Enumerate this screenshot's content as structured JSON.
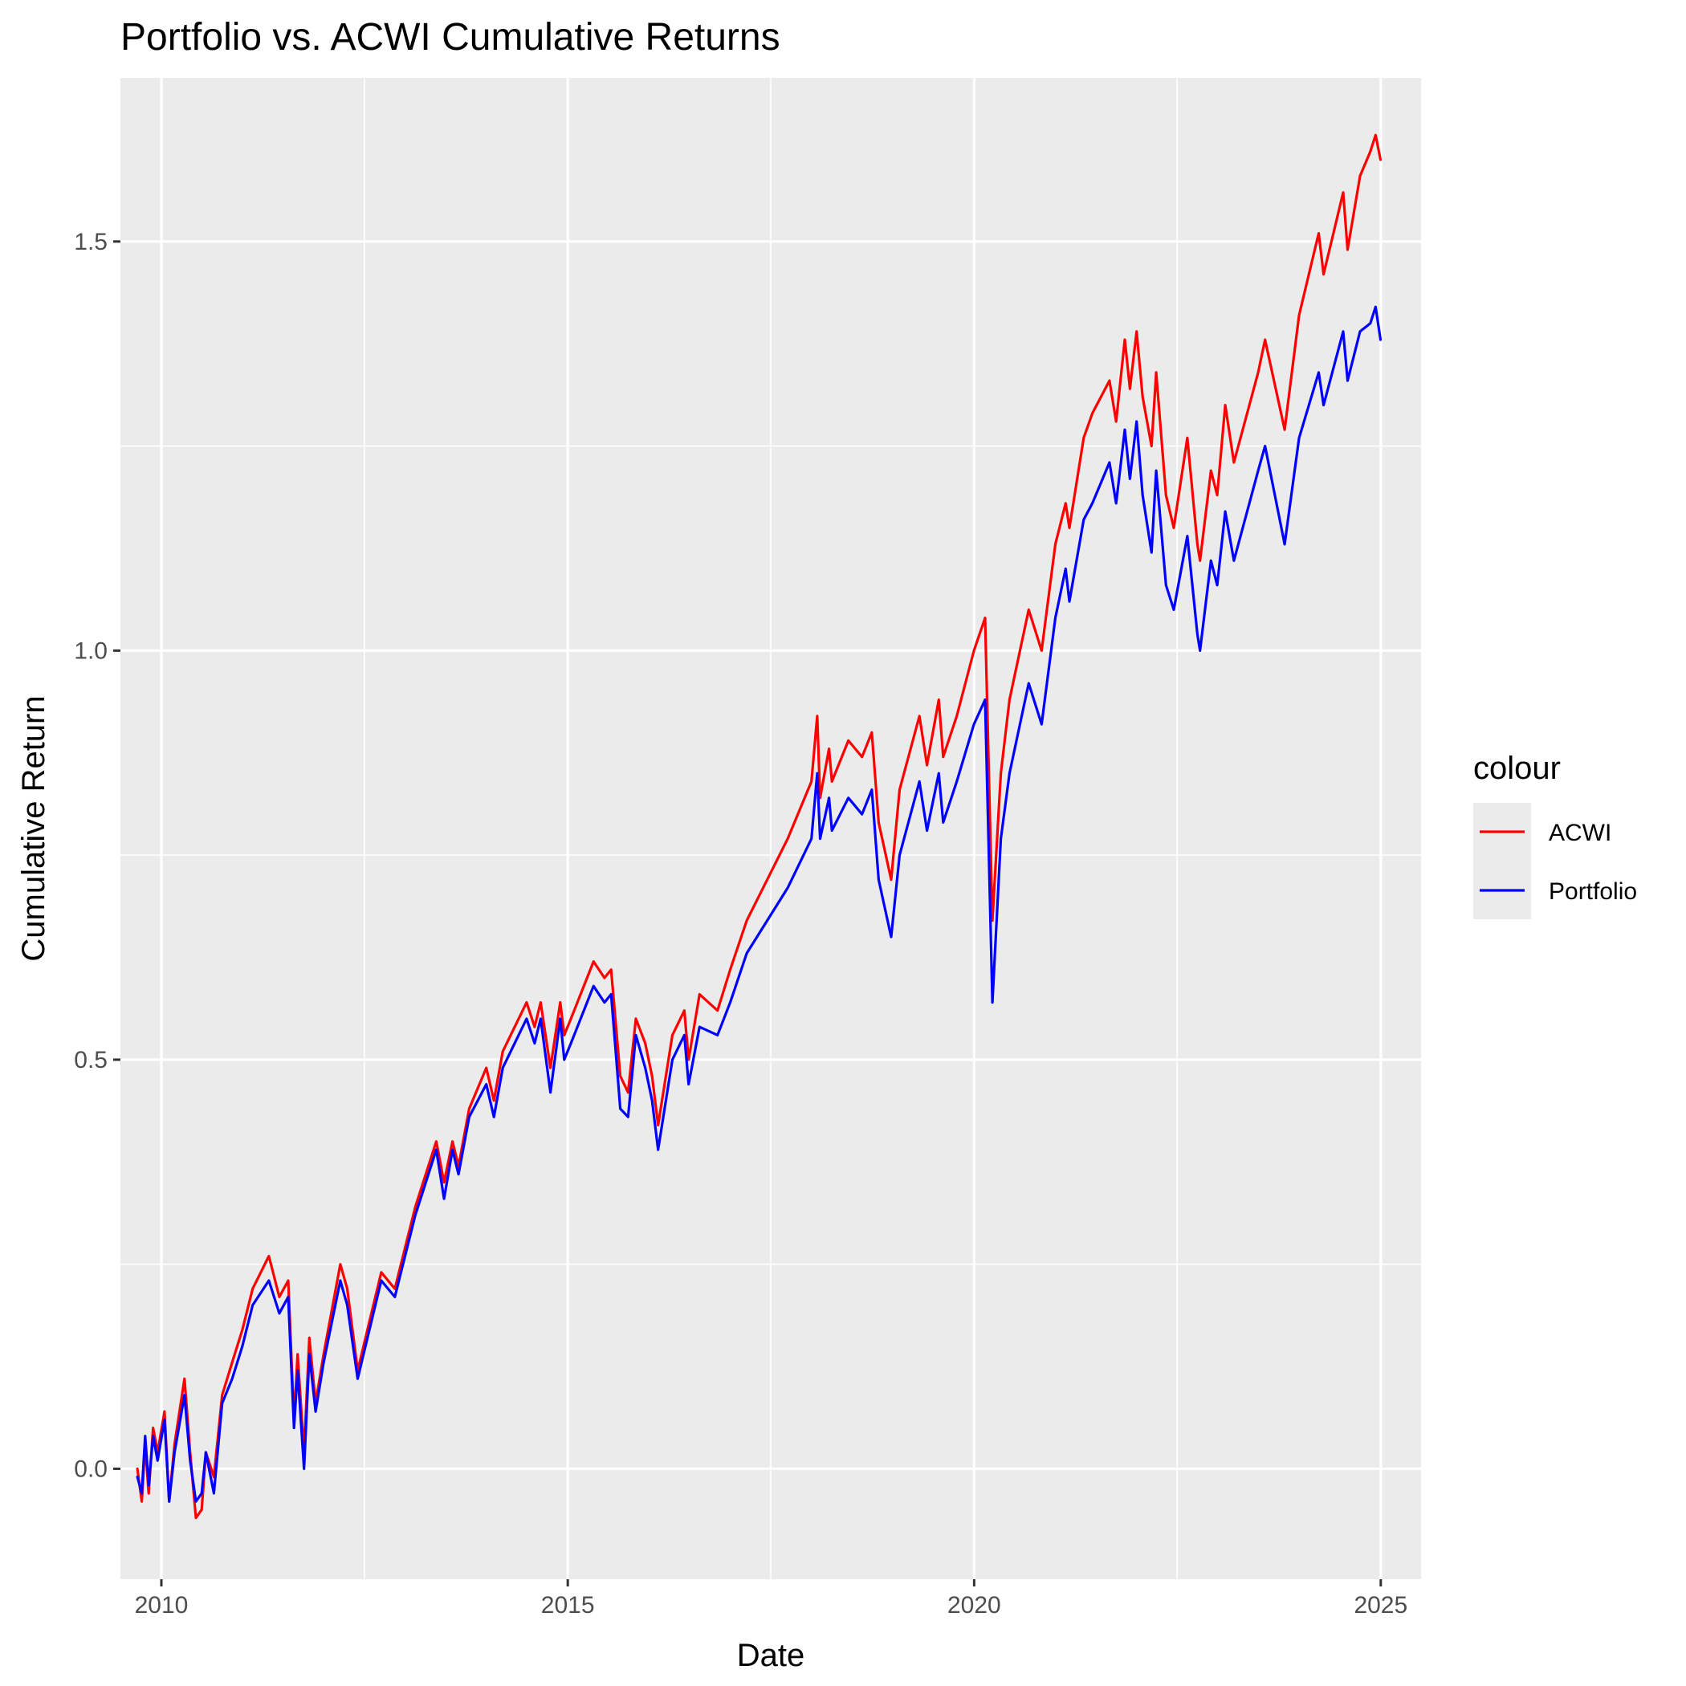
{
  "chart_data": {
    "type": "line",
    "title": "Portfolio vs. ACWI Cumulative Returns",
    "xlabel": "Date",
    "ylabel": "Cumulative Return",
    "xlim": [
      "2009-07-01",
      "2025-07-01"
    ],
    "ylim": [
      -0.135,
      1.7
    ],
    "x_ticks": [
      {
        "date": "2010-01-01",
        "label": "2010"
      },
      {
        "date": "2015-01-01",
        "label": "2015"
      },
      {
        "date": "2020-01-01",
        "label": "2020"
      },
      {
        "date": "2025-01-01",
        "label": "2025"
      }
    ],
    "x_minor_ticks": [
      "2012-07-01",
      "2017-07-01",
      "2022-07-01"
    ],
    "y_ticks": [
      0.0,
      0.5,
      1.0,
      1.5
    ],
    "y_tick_labels": [
      "0.0",
      "0.5",
      "1.0",
      "1.5"
    ],
    "y_minor_ticks": [
      0.25,
      0.75,
      1.25
    ],
    "grid": true,
    "legend": {
      "title": "colour",
      "position": "right"
    },
    "series": [
      {
        "name": "ACWI",
        "color": "#FF0000",
        "points": [
          [
            "2009-09-15",
            0.0
          ],
          [
            "2009-10-05",
            -0.04
          ],
          [
            "2009-10-20",
            0.03
          ],
          [
            "2009-11-05",
            -0.03
          ],
          [
            "2009-11-25",
            0.05
          ],
          [
            "2009-12-15",
            0.02
          ],
          [
            "2010-01-15",
            0.07
          ],
          [
            "2010-02-05",
            -0.04
          ],
          [
            "2010-03-01",
            0.03
          ],
          [
            "2010-04-15",
            0.11
          ],
          [
            "2010-05-10",
            0.02
          ],
          [
            "2010-06-05",
            -0.06
          ],
          [
            "2010-07-01",
            -0.05
          ],
          [
            "2010-07-20",
            0.02
          ],
          [
            "2010-08-25",
            -0.01
          ],
          [
            "2010-10-01",
            0.09
          ],
          [
            "2010-11-15",
            0.13
          ],
          [
            "2010-12-31",
            0.17
          ],
          [
            "2011-02-15",
            0.22
          ],
          [
            "2011-04-29",
            0.26
          ],
          [
            "2011-06-15",
            0.21
          ],
          [
            "2011-07-25",
            0.23
          ],
          [
            "2011-08-20",
            0.06
          ],
          [
            "2011-09-05",
            0.14
          ],
          [
            "2011-10-04",
            0.02
          ],
          [
            "2011-10-28",
            0.16
          ],
          [
            "2011-11-25",
            0.08
          ],
          [
            "2011-12-31",
            0.14
          ],
          [
            "2012-03-15",
            0.25
          ],
          [
            "2012-04-15",
            0.22
          ],
          [
            "2012-06-01",
            0.12
          ],
          [
            "2012-07-15",
            0.17
          ],
          [
            "2012-09-15",
            0.24
          ],
          [
            "2012-11-15",
            0.22
          ],
          [
            "2012-12-31",
            0.27
          ],
          [
            "2013-02-15",
            0.32
          ],
          [
            "2013-05-20",
            0.4
          ],
          [
            "2013-06-24",
            0.35
          ],
          [
            "2013-08-01",
            0.4
          ],
          [
            "2013-08-28",
            0.37
          ],
          [
            "2013-10-15",
            0.44
          ],
          [
            "2013-12-31",
            0.49
          ],
          [
            "2014-02-03",
            0.45
          ],
          [
            "2014-03-15",
            0.51
          ],
          [
            "2014-06-30",
            0.57
          ],
          [
            "2014-08-05",
            0.54
          ],
          [
            "2014-09-01",
            0.57
          ],
          [
            "2014-10-15",
            0.49
          ],
          [
            "2014-11-28",
            0.57
          ],
          [
            "2014-12-16",
            0.53
          ],
          [
            "2015-01-15",
            0.55
          ],
          [
            "2015-04-27",
            0.62
          ],
          [
            "2015-06-15",
            0.6
          ],
          [
            "2015-07-15",
            0.61
          ],
          [
            "2015-08-25",
            0.48
          ],
          [
            "2015-09-29",
            0.46
          ],
          [
            "2015-11-03",
            0.55
          ],
          [
            "2015-12-15",
            0.52
          ],
          [
            "2016-01-15",
            0.48
          ],
          [
            "2016-02-11",
            0.42
          ],
          [
            "2016-04-15",
            0.53
          ],
          [
            "2016-06-08",
            0.56
          ],
          [
            "2016-06-27",
            0.5
          ],
          [
            "2016-08-15",
            0.58
          ],
          [
            "2016-11-04",
            0.56
          ],
          [
            "2016-12-31",
            0.61
          ],
          [
            "2017-03-15",
            0.67
          ],
          [
            "2017-06-15",
            0.72
          ],
          [
            "2017-09-15",
            0.77
          ],
          [
            "2017-12-31",
            0.84
          ],
          [
            "2018-01-26",
            0.92
          ],
          [
            "2018-02-08",
            0.82
          ],
          [
            "2018-03-20",
            0.88
          ],
          [
            "2018-04-02",
            0.84
          ],
          [
            "2018-06-15",
            0.89
          ],
          [
            "2018-08-15",
            0.87
          ],
          [
            "2018-09-28",
            0.9
          ],
          [
            "2018-10-29",
            0.79
          ],
          [
            "2018-12-24",
            0.72
          ],
          [
            "2019-01-31",
            0.83
          ],
          [
            "2019-04-30",
            0.92
          ],
          [
            "2019-06-03",
            0.86
          ],
          [
            "2019-07-26",
            0.94
          ],
          [
            "2019-08-15",
            0.87
          ],
          [
            "2019-10-15",
            0.92
          ],
          [
            "2019-12-31",
            1.0
          ],
          [
            "2020-02-19",
            1.04
          ],
          [
            "2020-03-23",
            0.67
          ],
          [
            "2020-04-30",
            0.85
          ],
          [
            "2020-06-08",
            0.94
          ],
          [
            "2020-09-02",
            1.05
          ],
          [
            "2020-10-30",
            1.0
          ],
          [
            "2020-12-31",
            1.13
          ],
          [
            "2021-02-15",
            1.18
          ],
          [
            "2021-03-04",
            1.15
          ],
          [
            "2021-05-07",
            1.26
          ],
          [
            "2021-06-15",
            1.29
          ],
          [
            "2021-08-31",
            1.33
          ],
          [
            "2021-09-30",
            1.28
          ],
          [
            "2021-11-08",
            1.38
          ],
          [
            "2021-12-01",
            1.32
          ],
          [
            "2021-12-31",
            1.39
          ],
          [
            "2022-01-27",
            1.31
          ],
          [
            "2022-03-08",
            1.25
          ],
          [
            "2022-03-29",
            1.34
          ],
          [
            "2022-05-12",
            1.19
          ],
          [
            "2022-06-16",
            1.15
          ],
          [
            "2022-08-16",
            1.26
          ],
          [
            "2022-09-30",
            1.13
          ],
          [
            "2022-10-12",
            1.11
          ],
          [
            "2022-11-30",
            1.22
          ],
          [
            "2022-12-28",
            1.19
          ],
          [
            "2023-02-02",
            1.3
          ],
          [
            "2023-03-13",
            1.23
          ],
          [
            "2023-06-30",
            1.34
          ],
          [
            "2023-07-31",
            1.38
          ],
          [
            "2023-10-27",
            1.27
          ],
          [
            "2023-12-31",
            1.41
          ],
          [
            "2024-03-28",
            1.51
          ],
          [
            "2024-04-19",
            1.46
          ],
          [
            "2024-07-16",
            1.56
          ],
          [
            "2024-08-05",
            1.49
          ],
          [
            "2024-09-30",
            1.58
          ],
          [
            "2024-11-15",
            1.61
          ],
          [
            "2024-12-09",
            1.63
          ],
          [
            "2024-12-31",
            1.6
          ]
        ]
      },
      {
        "name": "Portfolio",
        "color": "#0000FF",
        "points": [
          [
            "2009-09-15",
            -0.01
          ],
          [
            "2009-10-05",
            -0.03
          ],
          [
            "2009-10-20",
            0.04
          ],
          [
            "2009-11-05",
            -0.02
          ],
          [
            "2009-11-25",
            0.04
          ],
          [
            "2009-12-15",
            0.01
          ],
          [
            "2010-01-15",
            0.06
          ],
          [
            "2010-02-05",
            -0.04
          ],
          [
            "2010-03-01",
            0.02
          ],
          [
            "2010-04-15",
            0.09
          ],
          [
            "2010-05-10",
            0.01
          ],
          [
            "2010-06-05",
            -0.04
          ],
          [
            "2010-07-01",
            -0.03
          ],
          [
            "2010-07-20",
            0.02
          ],
          [
            "2010-08-25",
            -0.03
          ],
          [
            "2010-10-01",
            0.08
          ],
          [
            "2010-11-15",
            0.11
          ],
          [
            "2010-12-31",
            0.15
          ],
          [
            "2011-02-15",
            0.2
          ],
          [
            "2011-04-29",
            0.23
          ],
          [
            "2011-06-15",
            0.19
          ],
          [
            "2011-07-25",
            0.21
          ],
          [
            "2011-08-20",
            0.05
          ],
          [
            "2011-09-05",
            0.12
          ],
          [
            "2011-10-04",
            0.0
          ],
          [
            "2011-10-28",
            0.14
          ],
          [
            "2011-11-25",
            0.07
          ],
          [
            "2011-12-31",
            0.13
          ],
          [
            "2012-03-15",
            0.23
          ],
          [
            "2012-04-15",
            0.2
          ],
          [
            "2012-06-01",
            0.11
          ],
          [
            "2012-07-15",
            0.16
          ],
          [
            "2012-09-15",
            0.23
          ],
          [
            "2012-11-15",
            0.21
          ],
          [
            "2012-12-31",
            0.26
          ],
          [
            "2013-02-15",
            0.31
          ],
          [
            "2013-05-20",
            0.39
          ],
          [
            "2013-06-24",
            0.33
          ],
          [
            "2013-08-01",
            0.39
          ],
          [
            "2013-08-28",
            0.36
          ],
          [
            "2013-10-15",
            0.43
          ],
          [
            "2013-12-31",
            0.47
          ],
          [
            "2014-02-03",
            0.43
          ],
          [
            "2014-03-15",
            0.49
          ],
          [
            "2014-06-30",
            0.55
          ],
          [
            "2014-08-05",
            0.52
          ],
          [
            "2014-09-01",
            0.55
          ],
          [
            "2014-10-15",
            0.46
          ],
          [
            "2014-11-28",
            0.55
          ],
          [
            "2014-12-16",
            0.5
          ],
          [
            "2015-01-15",
            0.52
          ],
          [
            "2015-04-27",
            0.59
          ],
          [
            "2015-06-15",
            0.57
          ],
          [
            "2015-07-15",
            0.58
          ],
          [
            "2015-08-25",
            0.44
          ],
          [
            "2015-09-29",
            0.43
          ],
          [
            "2015-11-03",
            0.53
          ],
          [
            "2015-12-15",
            0.49
          ],
          [
            "2016-01-15",
            0.45
          ],
          [
            "2016-02-11",
            0.39
          ],
          [
            "2016-04-15",
            0.5
          ],
          [
            "2016-06-08",
            0.53
          ],
          [
            "2016-06-27",
            0.47
          ],
          [
            "2016-08-15",
            0.54
          ],
          [
            "2016-11-04",
            0.53
          ],
          [
            "2016-12-31",
            0.57
          ],
          [
            "2017-03-15",
            0.63
          ],
          [
            "2017-06-15",
            0.67
          ],
          [
            "2017-09-15",
            0.71
          ],
          [
            "2017-12-31",
            0.77
          ],
          [
            "2018-01-26",
            0.85
          ],
          [
            "2018-02-08",
            0.77
          ],
          [
            "2018-03-20",
            0.82
          ],
          [
            "2018-04-02",
            0.78
          ],
          [
            "2018-06-15",
            0.82
          ],
          [
            "2018-08-15",
            0.8
          ],
          [
            "2018-09-28",
            0.83
          ],
          [
            "2018-10-29",
            0.72
          ],
          [
            "2018-12-24",
            0.65
          ],
          [
            "2019-01-31",
            0.75
          ],
          [
            "2019-04-30",
            0.84
          ],
          [
            "2019-06-03",
            0.78
          ],
          [
            "2019-07-26",
            0.85
          ],
          [
            "2019-08-15",
            0.79
          ],
          [
            "2019-10-15",
            0.84
          ],
          [
            "2019-12-31",
            0.91
          ],
          [
            "2020-02-19",
            0.94
          ],
          [
            "2020-03-23",
            0.57
          ],
          [
            "2020-04-30",
            0.77
          ],
          [
            "2020-06-08",
            0.85
          ],
          [
            "2020-09-02",
            0.96
          ],
          [
            "2020-10-30",
            0.91
          ],
          [
            "2020-12-31",
            1.04
          ],
          [
            "2021-02-15",
            1.1
          ],
          [
            "2021-03-04",
            1.06
          ],
          [
            "2021-05-07",
            1.16
          ],
          [
            "2021-06-15",
            1.18
          ],
          [
            "2021-08-31",
            1.23
          ],
          [
            "2021-09-30",
            1.18
          ],
          [
            "2021-11-08",
            1.27
          ],
          [
            "2021-12-01",
            1.21
          ],
          [
            "2021-12-31",
            1.28
          ],
          [
            "2022-01-27",
            1.19
          ],
          [
            "2022-03-08",
            1.12
          ],
          [
            "2022-03-29",
            1.22
          ],
          [
            "2022-05-12",
            1.08
          ],
          [
            "2022-06-16",
            1.05
          ],
          [
            "2022-08-16",
            1.14
          ],
          [
            "2022-09-30",
            1.02
          ],
          [
            "2022-10-12",
            1.0
          ],
          [
            "2022-11-30",
            1.11
          ],
          [
            "2022-12-28",
            1.08
          ],
          [
            "2023-02-02",
            1.17
          ],
          [
            "2023-03-13",
            1.11
          ],
          [
            "2023-06-30",
            1.22
          ],
          [
            "2023-07-31",
            1.25
          ],
          [
            "2023-10-27",
            1.13
          ],
          [
            "2023-12-31",
            1.26
          ],
          [
            "2024-03-28",
            1.34
          ],
          [
            "2024-04-19",
            1.3
          ],
          [
            "2024-07-16",
            1.39
          ],
          [
            "2024-08-05",
            1.33
          ],
          [
            "2024-09-30",
            1.39
          ],
          [
            "2024-11-15",
            1.4
          ],
          [
            "2024-12-09",
            1.42
          ],
          [
            "2024-12-31",
            1.38
          ]
        ]
      }
    ]
  }
}
